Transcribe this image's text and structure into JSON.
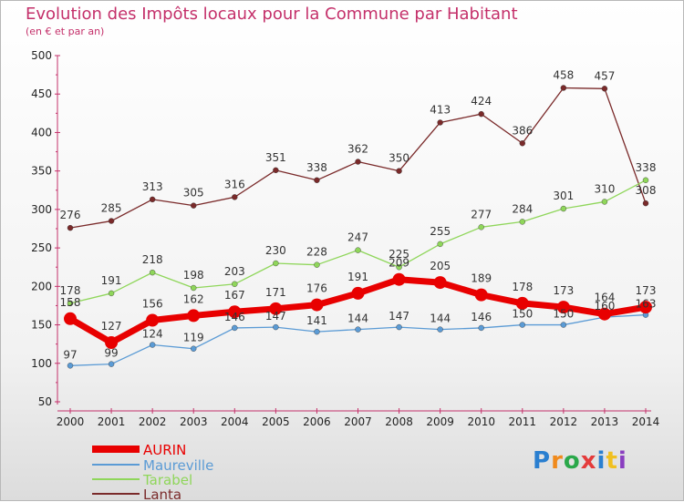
{
  "header": {
    "title": "Evolution des Impôts locaux pour la Commune par Habitant",
    "subtitle": "(en € et par an)"
  },
  "logo": {
    "text": "Proxiti",
    "colors": [
      "#2a7fd0",
      "#f08a1c",
      "#2aa84a",
      "#e43b3b",
      "#2a7fd0",
      "#f0c020",
      "#8a3ec0"
    ]
  },
  "colors": {
    "title": "#c4306a",
    "axis": "#c4306a"
  },
  "chart_data": {
    "type": "line",
    "title": "Evolution des Impôts locaux pour la Commune par Habitant",
    "subtitle": "(en € et par an)",
    "xlabel": "",
    "ylabel": "",
    "x": [
      "2000",
      "2001",
      "2002",
      "2003",
      "2004",
      "2005",
      "2006",
      "2007",
      "2008",
      "2009",
      "2010",
      "2011",
      "2012",
      "2013",
      "2014"
    ],
    "yticks": [
      50,
      100,
      150,
      200,
      250,
      300,
      350,
      400,
      450,
      500
    ],
    "ylim": [
      50,
      500
    ],
    "grid": false,
    "legend": "bottom-left",
    "series": [
      {
        "name": "AURIN",
        "color": "#e80000",
        "values": [
          158,
          127,
          156,
          162,
          167,
          171,
          176,
          191,
          209,
          205,
          189,
          178,
          173,
          164,
          173
        ]
      },
      {
        "name": "Maureville",
        "color": "#5b9bd5",
        "values": [
          97,
          99,
          124,
          119,
          146,
          147,
          141,
          144,
          147,
          144,
          146,
          150,
          150,
          160,
          163
        ]
      },
      {
        "name": "Tarabel",
        "color": "#8fd65a",
        "values": [
          178,
          191,
          218,
          198,
          203,
          230,
          228,
          247,
          225,
          255,
          277,
          284,
          301,
          310,
          338
        ]
      },
      {
        "name": "Lanta",
        "color": "#7a2a2a",
        "values": [
          276,
          285,
          313,
          305,
          316,
          351,
          338,
          362,
          350,
          413,
          424,
          386,
          458,
          457,
          308
        ]
      }
    ]
  }
}
